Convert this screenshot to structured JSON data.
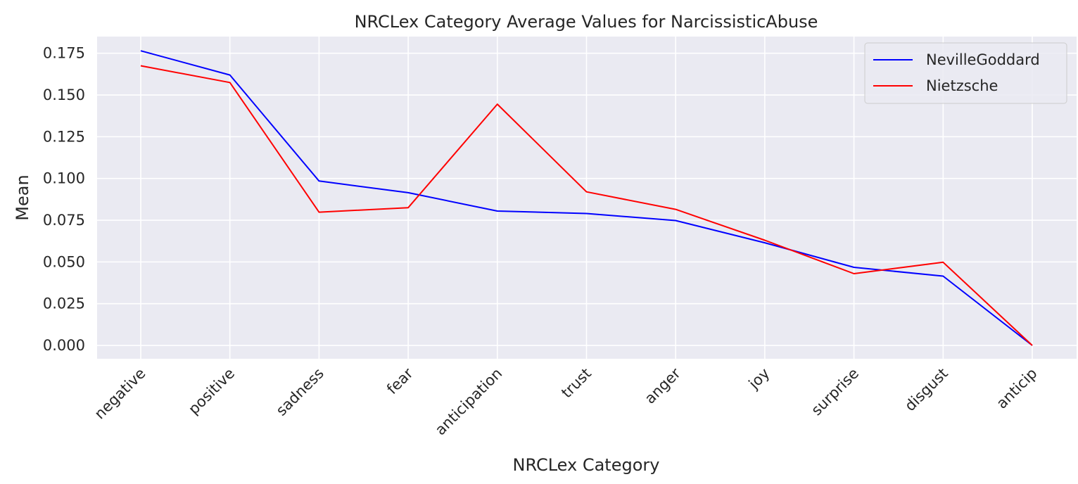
{
  "chart_data": {
    "type": "line",
    "title": "NRCLex Category Average Values for NarcissisticAbuse",
    "xlabel": "NRCLex Category",
    "ylabel": "Mean",
    "categories": [
      "negative",
      "positive",
      "sadness",
      "fear",
      "anticipation",
      "trust",
      "anger",
      "joy",
      "surprise",
      "disgust",
      "anticip"
    ],
    "series": [
      {
        "name": "NevilleGoddard",
        "color": "#0000ff",
        "values": [
          0.1765,
          0.162,
          0.0985,
          0.0915,
          0.0805,
          0.079,
          0.0748,
          0.0615,
          0.0468,
          0.0415,
          0.0
        ]
      },
      {
        "name": "Nietzsche",
        "color": "#ff0000",
        "values": [
          0.1675,
          0.1575,
          0.0798,
          0.0825,
          0.1445,
          0.092,
          0.0815,
          0.063,
          0.043,
          0.0498,
          0.0
        ]
      }
    ],
    "yticks": [
      "0.000",
      "0.025",
      "0.050",
      "0.075",
      "0.100",
      "0.125",
      "0.150",
      "0.175"
    ],
    "ytick_values": [
      0.0,
      0.025,
      0.05,
      0.075,
      0.1,
      0.125,
      0.15,
      0.175
    ],
    "ylim": [
      -0.008,
      0.185
    ],
    "grid": true,
    "legend_position": "top-right",
    "background_color": "#eaeaf2",
    "grid_color": "#ffffff"
  }
}
